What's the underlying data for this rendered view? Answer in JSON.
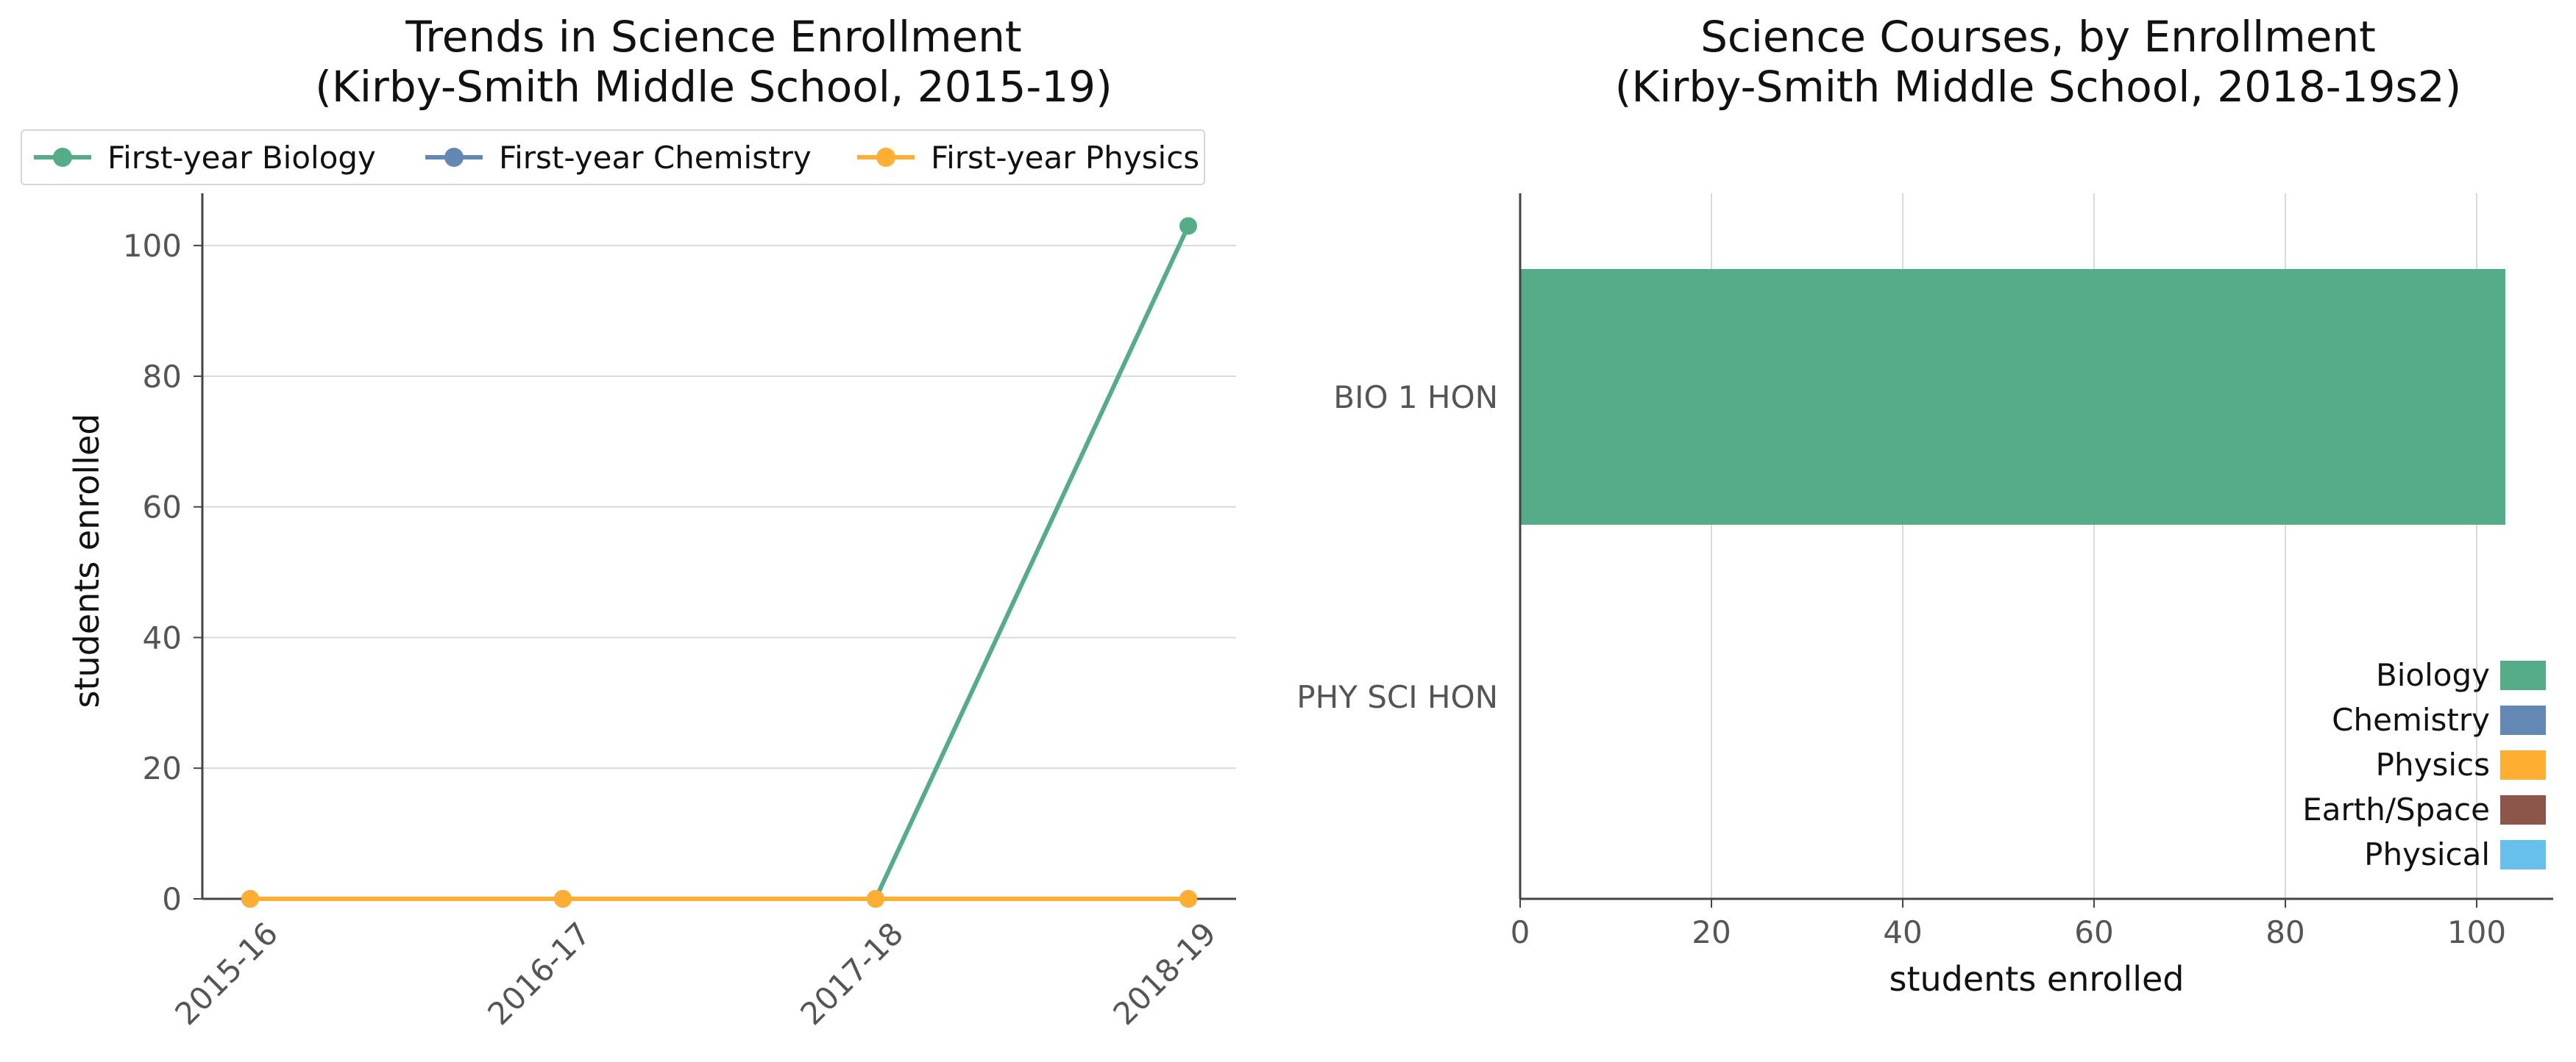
{
  "chart_data": [
    {
      "type": "line",
      "title": [
        "Trends in Science Enrollment",
        "(Kirby-Smith Middle School, 2015-19)"
      ],
      "xlabel": "",
      "ylabel": "students enrolled",
      "categories": [
        "2015-16",
        "2016-17",
        "2017-18",
        "2018-19"
      ],
      "ylim": [
        0,
        108
      ],
      "yticks": [
        "0",
        "20",
        "40",
        "60",
        "80",
        "100"
      ],
      "grid": "horizontal",
      "legend_position": "top",
      "series": [
        {
          "name": "First-year Biology",
          "color": "#55AC88",
          "values": [
            0,
            0,
            0,
            103
          ]
        },
        {
          "name": "First-year Chemistry",
          "color": "#6388B4",
          "values": [
            0,
            0,
            0,
            0
          ]
        },
        {
          "name": "First-year Physics",
          "color": "#FFAE34",
          "values": [
            0,
            0,
            0,
            0
          ]
        }
      ]
    },
    {
      "type": "bar",
      "orientation": "horizontal",
      "title": [
        "Science Courses, by Enrollment",
        "(Kirby-Smith Middle School, 2018-19s2)"
      ],
      "xlabel": "students enrolled",
      "ylabel": "",
      "categories": [
        "BIO 1 HON",
        "PHY SCI HON"
      ],
      "values": [
        103,
        0
      ],
      "bar_colors": [
        "#55AC88",
        "#55AC88"
      ],
      "xlim": [
        0,
        108
      ],
      "xticks": [
        "0",
        "20",
        "40",
        "60",
        "80",
        "100"
      ],
      "grid": "vertical",
      "legend_position": "lower-right",
      "legend": [
        {
          "name": "Biology",
          "color": "#55AC88"
        },
        {
          "name": "Chemistry",
          "color": "#6388B4"
        },
        {
          "name": "Physics",
          "color": "#FFAE34"
        },
        {
          "name": "Earth/Space",
          "color": "#8C564B"
        },
        {
          "name": "Physical",
          "color": "#67BFEB"
        }
      ]
    }
  ]
}
